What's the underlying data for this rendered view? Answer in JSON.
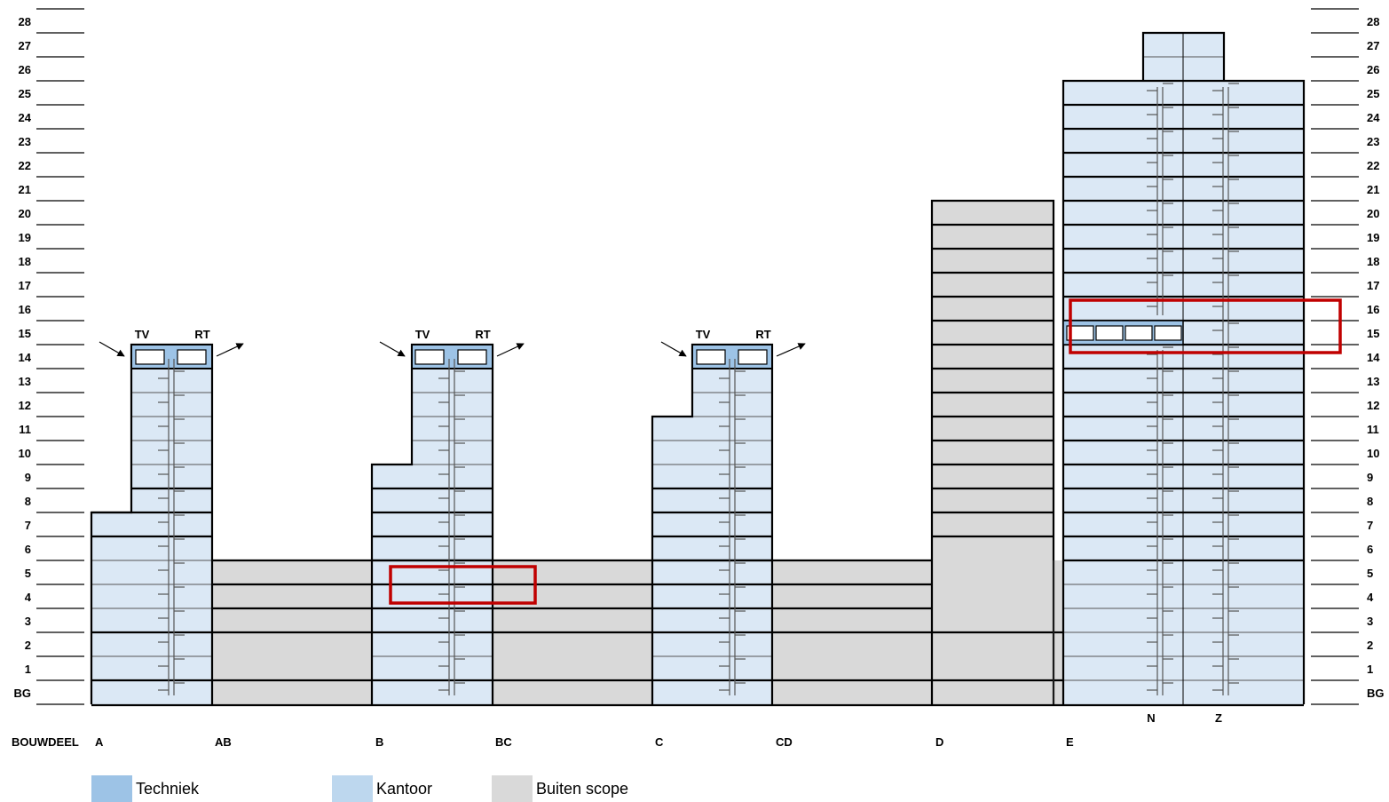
{
  "levels": [
    "BG",
    "1",
    "2",
    "3",
    "4",
    "5",
    "6",
    "7",
    "8",
    "9",
    "10",
    "11",
    "12",
    "13",
    "14",
    "15",
    "16",
    "17",
    "18",
    "19",
    "20",
    "21",
    "22",
    "23",
    "24",
    "25",
    "26",
    "27",
    "28"
  ],
  "bouwdeel_header": "BOUWDEEL",
  "bouwdeel_labels": [
    "A",
    "AB",
    "B",
    "BC",
    "C",
    "CD",
    "D",
    "E"
  ],
  "core_labels": {
    "north": "N",
    "south": "Z"
  },
  "plant_labels": {
    "intake": "TV",
    "exhaust": "RT"
  },
  "legend": [
    {
      "label": "Techniek",
      "color": "#9dc3e6"
    },
    {
      "label": "Kantoor",
      "color": "#bdd7ee"
    },
    {
      "label": "Buiten scope",
      "color": "#d9d9d9"
    }
  ],
  "colors": {
    "kantoor_fill": "#dbe8f5",
    "techniek_fill": "#9dc3e6",
    "buiten_scope_fill": "#d9d9d9",
    "highlight": "#c00000"
  },
  "building_parts": [
    {
      "part": "A",
      "tiers": [
        {
          "floors": "BG-7"
        },
        {
          "floors": "8-13"
        }
      ],
      "plant_floor": "14",
      "scope": "Kantoor"
    },
    {
      "part": "AB",
      "floors": "BG-5",
      "scope": "Buiten scope"
    },
    {
      "part": "B",
      "tiers": [
        {
          "floors": "BG-9"
        },
        {
          "floors": "10-13"
        }
      ],
      "plant_floor": "14",
      "scope": "Kantoor"
    },
    {
      "part": "BC",
      "floors": "BG-5",
      "scope": "Buiten scope"
    },
    {
      "part": "C",
      "tiers": [
        {
          "floors": "BG-11"
        },
        {
          "floors": "12-13"
        }
      ],
      "plant_floor": "14",
      "scope": "Kantoor"
    },
    {
      "part": "CD",
      "floors": "BG-5",
      "scope": "Buiten scope"
    },
    {
      "part": "D",
      "floors": "BG-20",
      "scope": "Buiten scope"
    },
    {
      "part": "E",
      "floors": "BG-27",
      "plant_floor": "15",
      "scope": "Kantoor"
    }
  ],
  "highlights": [
    {
      "building": "B",
      "floors": "4"
    },
    {
      "building": "E",
      "floors": "15"
    }
  ]
}
